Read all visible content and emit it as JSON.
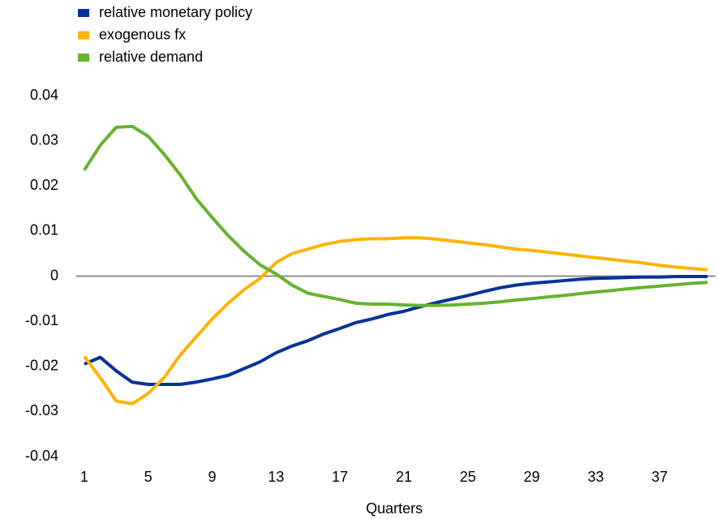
{
  "chart_data": {
    "type": "line",
    "x_label": "Quarters",
    "x": [
      1,
      2,
      3,
      4,
      5,
      6,
      7,
      8,
      9,
      10,
      11,
      12,
      13,
      14,
      15,
      16,
      17,
      18,
      19,
      20,
      21,
      22,
      23,
      24,
      25,
      26,
      27,
      28,
      29,
      30,
      31,
      32,
      33,
      34,
      35,
      36,
      37,
      38,
      39,
      40
    ],
    "xlim": [
      0.5,
      40.5
    ],
    "xticks": [
      1,
      5,
      9,
      13,
      17,
      21,
      25,
      29,
      33,
      37
    ],
    "ylim": [
      -0.04,
      0.04
    ],
    "yticks": [
      -0.04,
      -0.03,
      -0.02,
      -0.01,
      0,
      0.01,
      0.02,
      0.03,
      0.04
    ],
    "zero_line": true,
    "legend": "top-left",
    "series": [
      {
        "name": "relative monetary policy",
        "color": "#003299",
        "values": [
          -0.0195,
          -0.018,
          -0.021,
          -0.0235,
          -0.024,
          -0.024,
          -0.024,
          -0.0235,
          -0.0228,
          -0.022,
          -0.0205,
          -0.019,
          -0.017,
          -0.0155,
          -0.0143,
          -0.0128,
          -0.0116,
          -0.0103,
          -0.0095,
          -0.0085,
          -0.0078,
          -0.0068,
          -0.0059,
          -0.0051,
          -0.0043,
          -0.0034,
          -0.0026,
          -0.002,
          -0.0016,
          -0.0013,
          -0.001,
          -0.0007,
          -0.0005,
          -0.0004,
          -0.0003,
          -0.0002,
          -0.0002,
          -0.0001,
          -0.0001,
          -0.0001
        ]
      },
      {
        "name": "exogenous fx",
        "color": "#ffb400",
        "values": [
          -0.0178,
          -0.0225,
          -0.0277,
          -0.0283,
          -0.026,
          -0.0225,
          -0.0175,
          -0.0135,
          -0.0095,
          -0.006,
          -0.003,
          -0.0005,
          0.003,
          0.005,
          0.006,
          0.007,
          0.0077,
          0.0081,
          0.0083,
          0.0083,
          0.0085,
          0.0085,
          0.0082,
          0.0078,
          0.0074,
          0.007,
          0.0065,
          0.006,
          0.0057,
          0.0053,
          0.0049,
          0.0045,
          0.0041,
          0.0037,
          0.0033,
          0.0029,
          0.0024,
          0.002,
          0.0017,
          0.0014
        ]
      },
      {
        "name": "relative demand",
        "color": "#65b32e",
        "values": [
          0.0235,
          0.029,
          0.033,
          0.0332,
          0.031,
          0.027,
          0.0225,
          0.0172,
          0.013,
          0.009,
          0.0055,
          0.0025,
          0.0005,
          -0.002,
          -0.0038,
          -0.0045,
          -0.0052,
          -0.006,
          -0.0062,
          -0.0062,
          -0.0064,
          -0.0065,
          -0.0065,
          -0.0064,
          -0.0062,
          -0.006,
          -0.0057,
          -0.0053,
          -0.005,
          -0.0046,
          -0.0043,
          -0.0039,
          -0.0035,
          -0.0032,
          -0.0028,
          -0.0025,
          -0.0022,
          -0.0019,
          -0.0016,
          -0.0014
        ]
      }
    ]
  }
}
